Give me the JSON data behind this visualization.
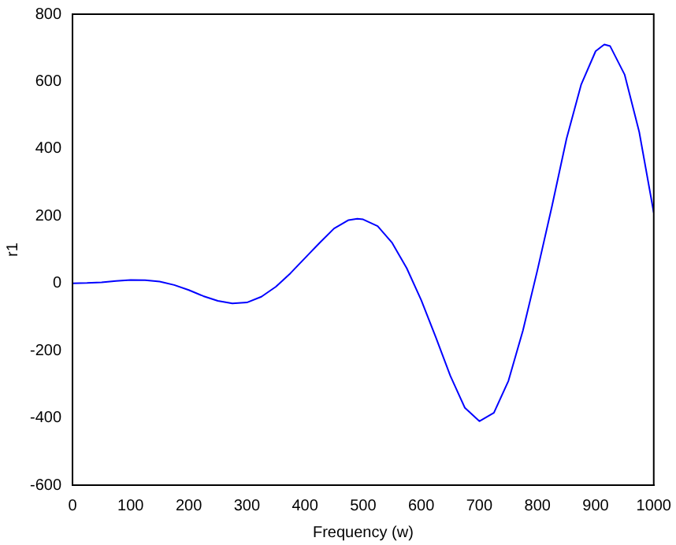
{
  "chart_data": {
    "type": "line",
    "xlabel": "Frequency (w)",
    "ylabel": "r1",
    "x": [
      0,
      25,
      50,
      75,
      100,
      125,
      150,
      175,
      200,
      225,
      250,
      275,
      300,
      325,
      350,
      375,
      400,
      425,
      450,
      475,
      490,
      500,
      525,
      550,
      575,
      600,
      625,
      650,
      675,
      700,
      725,
      750,
      775,
      800,
      825,
      850,
      875,
      900,
      915,
      925,
      950,
      975,
      1000
    ],
    "series": [
      {
        "color": "#0000ff",
        "values": [
          0,
          1,
          3,
          7,
          10,
          9,
          5,
          -5,
          -20,
          -38,
          -52,
          -60,
          -57,
          -40,
          -10,
          30,
          75,
          120,
          163,
          188,
          192,
          190,
          170,
          120,
          45,
          -50,
          -160,
          -275,
          -370,
          -410,
          -385,
          -290,
          -140,
          40,
          230,
          430,
          590,
          690,
          710,
          705,
          620,
          450,
          210
        ]
      }
    ],
    "xlim": [
      0,
      1000
    ],
    "xticks": [
      0,
      100,
      200,
      300,
      400,
      500,
      600,
      700,
      800,
      900,
      1000
    ],
    "ylim": [
      -600,
      800
    ],
    "yticks": [
      -600,
      -400,
      -200,
      0,
      200,
      400,
      600,
      800
    ],
    "grid": false,
    "legend": false,
    "marker": "none",
    "line_style": "solid"
  }
}
